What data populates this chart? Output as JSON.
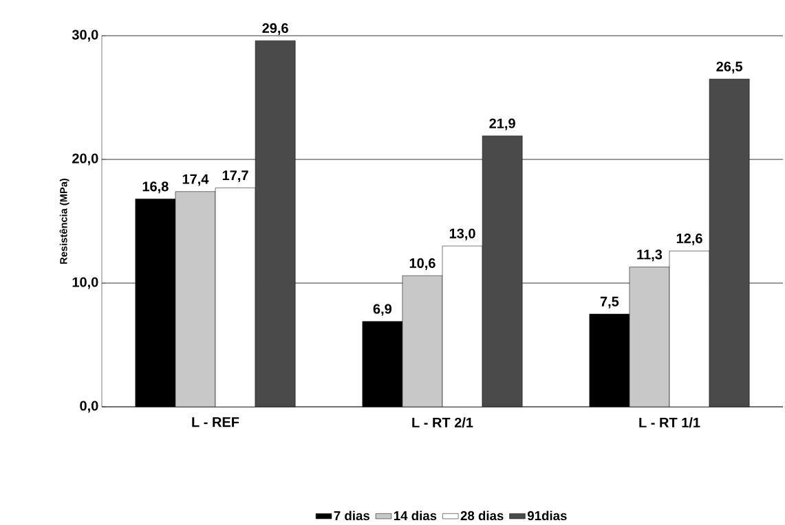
{
  "chart_data": {
    "type": "bar",
    "ylabel": "Resistência (MPa)",
    "categories": [
      "L - REF",
      "L - RT 2/1",
      "L - RT 1/1"
    ],
    "series": [
      {
        "name": "7 dias",
        "color": "#000000",
        "values": [
          16.8,
          6.9,
          7.5
        ],
        "value_labels": [
          "16,8",
          "6,9",
          "7,5"
        ]
      },
      {
        "name": "14 dias",
        "color": "#c8c8c8",
        "values": [
          17.4,
          10.6,
          11.3
        ],
        "value_labels": [
          "17,4",
          "10,6",
          "11,3"
        ]
      },
      {
        "name": "28 dias",
        "color": "#ffffff",
        "values": [
          17.7,
          13.0,
          12.6
        ],
        "value_labels": [
          "17,7",
          "13,0",
          "12,6"
        ]
      },
      {
        "name": "91dias",
        "color": "#4a4a4a",
        "values": [
          29.6,
          21.9,
          26.5
        ],
        "value_labels": [
          "29,6",
          "21,9",
          "26,5"
        ]
      }
    ],
    "ylim": [
      0,
      30
    ],
    "yticks": [
      {
        "value": 0,
        "label": "0,0"
      },
      {
        "value": 10,
        "label": "10,0"
      },
      {
        "value": 20,
        "label": "20,0"
      },
      {
        "value": 30,
        "label": "30,0"
      }
    ],
    "grid": "y",
    "legend": "bottom"
  }
}
